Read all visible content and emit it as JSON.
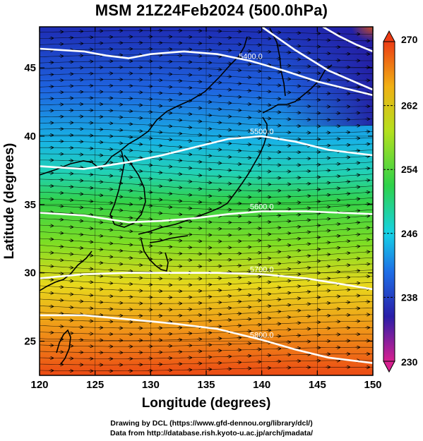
{
  "title": "MSM 21Z24Feb2024 (500.0hPa)",
  "xlabel": "Longitude (degrees)",
  "ylabel": "Latitude  (degrees)",
  "x_ticks": [
    "120",
    "125",
    "130",
    "135",
    "140",
    "145",
    "150"
  ],
  "y_ticks": [
    "25",
    "30",
    "35",
    "40",
    "45"
  ],
  "colorbar": {
    "min": 230,
    "max": 270,
    "labels": [
      "270",
      "262",
      "254",
      "246",
      "238",
      "230"
    ],
    "colors": [
      "#d82090",
      "#2a1ea8",
      "#1e6ee6",
      "#16d2e6",
      "#2ed24a",
      "#b4e01e",
      "#f0b014",
      "#ec3c14"
    ]
  },
  "contours": [
    {
      "label": "5400.0",
      "points": [
        [
          120,
          46.4
        ],
        [
          124,
          46.2
        ],
        [
          126,
          45.9
        ],
        [
          128,
          45.7
        ],
        [
          130,
          46.0
        ],
        [
          133,
          46.2
        ],
        [
          136,
          46.0
        ],
        [
          139,
          45.5
        ],
        [
          142,
          44.8
        ],
        [
          145,
          44.0
        ],
        [
          148,
          43.4
        ],
        [
          150,
          43.0
        ]
      ]
    },
    {
      "label": "5500.0",
      "points": [
        [
          120,
          37.8
        ],
        [
          124,
          37.6
        ],
        [
          128,
          38.1
        ],
        [
          131,
          38.6
        ],
        [
          134,
          39.2
        ],
        [
          137,
          39.8
        ],
        [
          140,
          40.0
        ],
        [
          143,
          39.6
        ],
        [
          146,
          39.0
        ],
        [
          150,
          38.6
        ]
      ]
    },
    {
      "label": "5600.0",
      "points": [
        [
          120,
          34.4
        ],
        [
          124,
          34.2
        ],
        [
          128,
          33.7
        ],
        [
          131,
          33.8
        ],
        [
          134,
          34.0
        ],
        [
          137,
          34.3
        ],
        [
          140,
          34.5
        ],
        [
          144,
          34.5
        ],
        [
          147,
          34.4
        ],
        [
          150,
          34.3
        ]
      ]
    },
    {
      "label": "5700.0",
      "points": [
        [
          120,
          29.6
        ],
        [
          124,
          29.9
        ],
        [
          128,
          30.0
        ],
        [
          132,
          30.0
        ],
        [
          136,
          30.0
        ],
        [
          140,
          29.9
        ],
        [
          144,
          29.6
        ],
        [
          147,
          29.2
        ],
        [
          150,
          28.8
        ]
      ]
    },
    {
      "label": "5800.0",
      "points": [
        [
          120,
          26.9
        ],
        [
          124,
          26.9
        ],
        [
          128,
          26.6
        ],
        [
          132,
          26.3
        ],
        [
          136,
          25.9
        ],
        [
          140,
          25.1
        ],
        [
          143,
          24.4
        ],
        [
          146,
          23.8
        ],
        [
          150,
          23.4
        ]
      ]
    },
    {
      "label": "",
      "points": [
        [
          140,
          48.0
        ],
        [
          143,
          46.3
        ],
        [
          146,
          44.8
        ],
        [
          148,
          44.1
        ],
        [
          150,
          43.4
        ]
      ]
    },
    {
      "label": "",
      "points": [
        [
          145.5,
          48.0
        ],
        [
          147,
          47.3
        ],
        [
          148.5,
          46.7
        ],
        [
          150,
          46.2
        ]
      ]
    }
  ],
  "credits": {
    "line1": "Drawing by DCL (https://www.gfd-dennou.org/library/dcl/)",
    "line2": "Data from http://database.rish.kyoto-u.ac.jp/arch/jmadata/"
  }
}
